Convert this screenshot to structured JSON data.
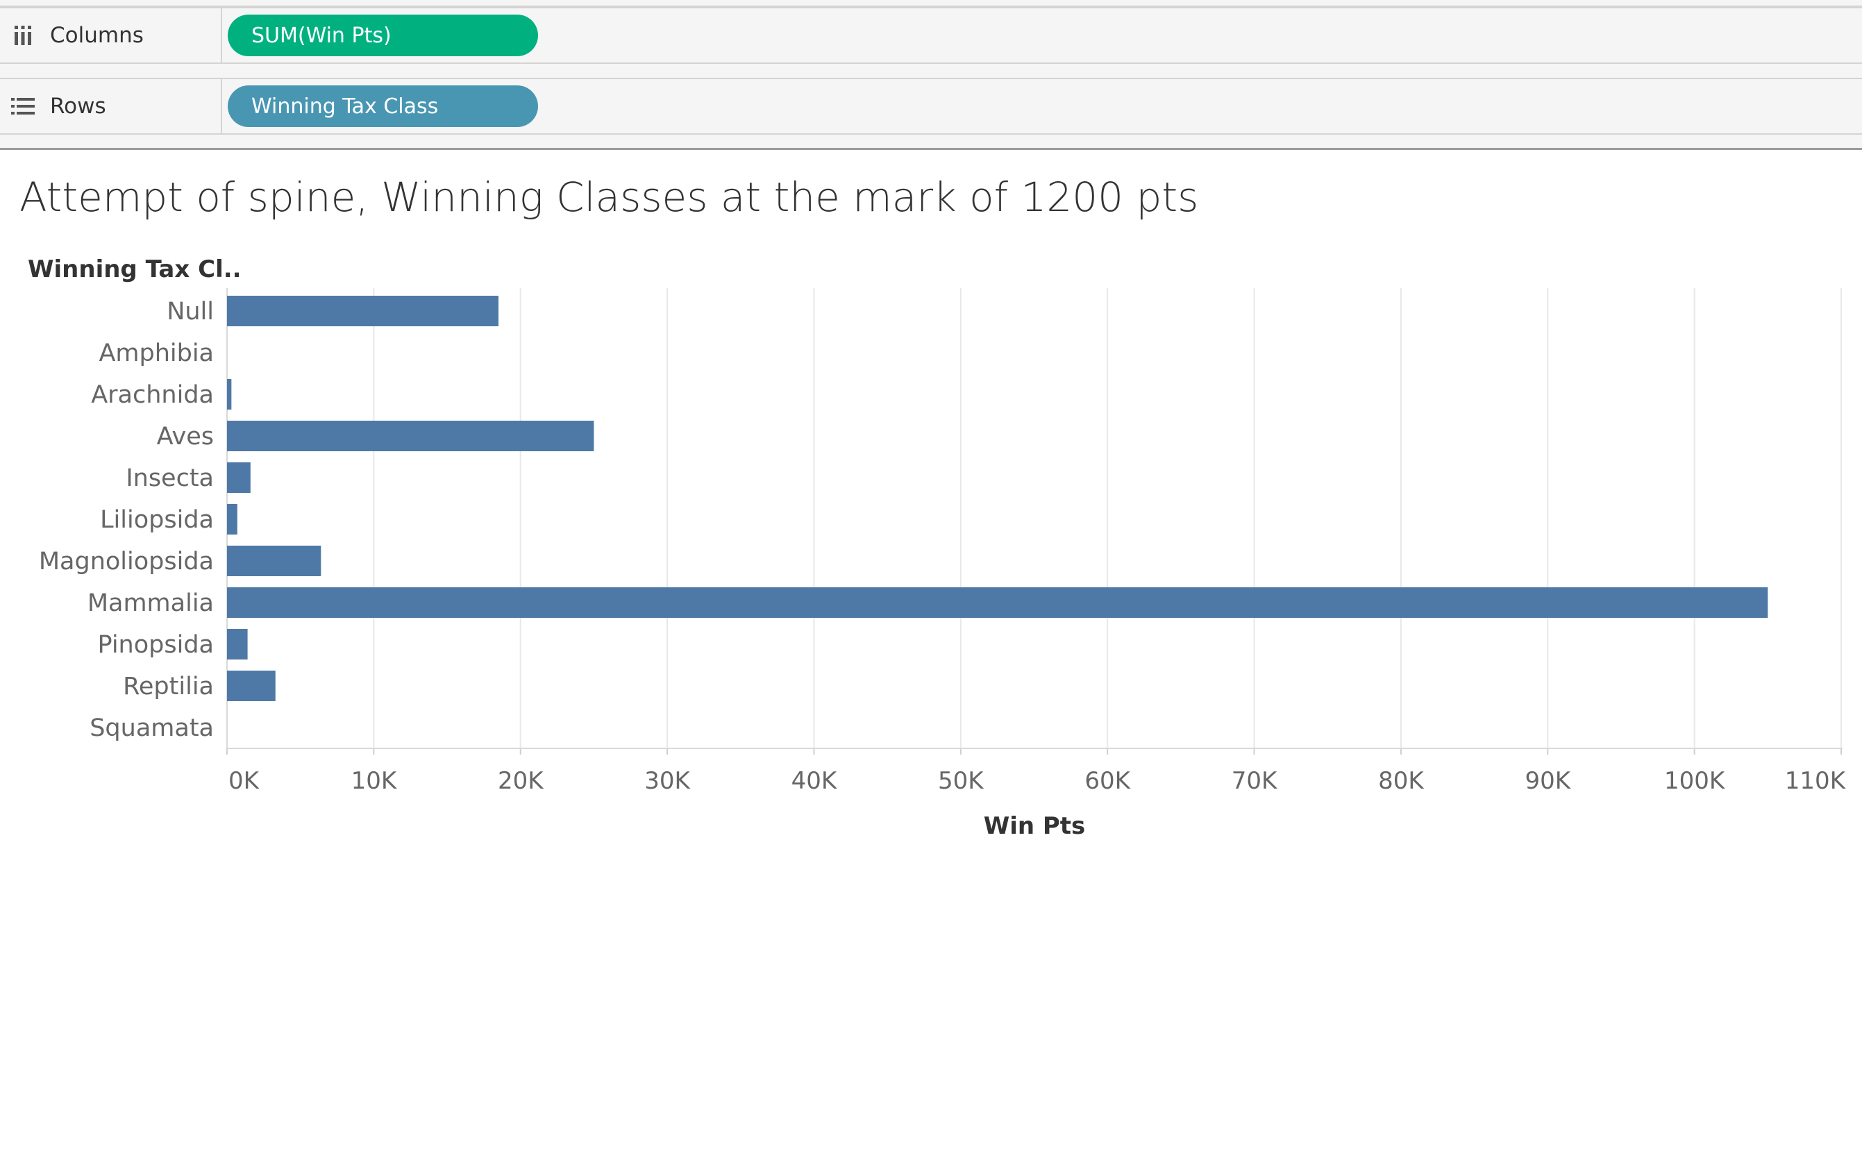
{
  "shelves": {
    "columns": {
      "label": "Columns",
      "icon": "columns-icon",
      "pill": "SUM(Win Pts)",
      "pill_color": "#00b180"
    },
    "rows": {
      "label": "Rows",
      "icon": "rows-icon",
      "pill": "Winning Tax Class",
      "pill_color": "#4996b2"
    }
  },
  "chart": {
    "title": "Attempt of spine, Winning Classes at the mark of 1200 pts",
    "row_header": "Winning Tax Cl..",
    "bar_color": "#4e79a7",
    "gridline_color": "#e8e8e8"
  },
  "chart_data": {
    "type": "bar",
    "orientation": "horizontal",
    "categories": [
      "Null",
      "Amphibia",
      "Arachnida",
      "Aves",
      "Insecta",
      "Liliopsida",
      "Magnoliopsida",
      "Mammalia",
      "Pinopsida",
      "Reptilia",
      "Squamata"
    ],
    "values": [
      18500,
      0,
      300,
      25000,
      1600,
      700,
      6400,
      105000,
      1400,
      3300,
      0
    ],
    "xlabel": "Win Pts",
    "ylabel": "Winning Tax Cl..",
    "xlim": [
      0,
      110000
    ],
    "xticks": [
      0,
      10000,
      20000,
      30000,
      40000,
      50000,
      60000,
      70000,
      80000,
      90000,
      100000,
      110000
    ],
    "xtick_labels": [
      "0K",
      "10K",
      "20K",
      "30K",
      "40K",
      "50K",
      "60K",
      "70K",
      "80K",
      "90K",
      "100K",
      "110K"
    ],
    "grid": "vertical"
  }
}
